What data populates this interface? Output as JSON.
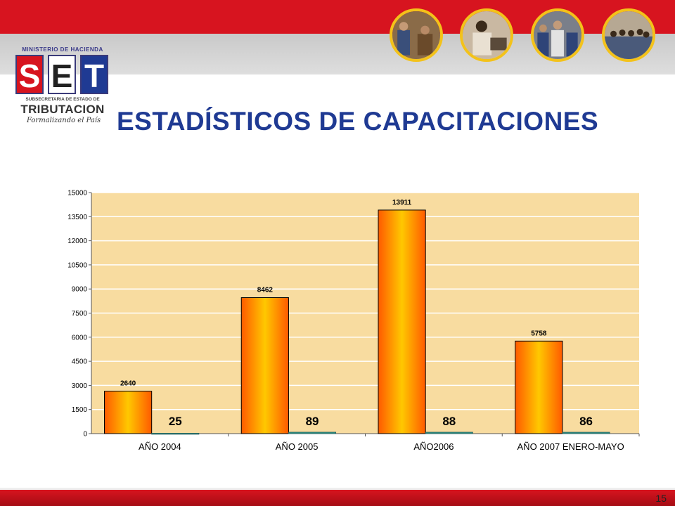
{
  "header": {
    "logo": {
      "top_text": "MINISTERIO DE HACIENDA",
      "letters": [
        "S",
        "E",
        "T"
      ],
      "subtitle": "SUBSECRETARIA DE ESTADO DE",
      "name": "TRIBUTACION",
      "tagline": "Formalizando el País"
    },
    "photos": [
      "photo-training-1",
      "photo-training-2",
      "photo-training-3",
      "photo-training-4"
    ],
    "colors": {
      "brand_red": "#d7141f",
      "brand_blue": "#1f3a93",
      "photo_border": "#f3c21a"
    }
  },
  "title": "ESTADÍSTICOS DE CAPACITACIONES",
  "chart_data": {
    "type": "bar",
    "categories": [
      "AÑO 2004",
      "AÑO 2005",
      "AÑO2006",
      "AÑO 2007 ENERO-MAYO"
    ],
    "series": [
      {
        "values": [
          2640,
          8462,
          13911,
          5758
        ],
        "labels": [
          "2640",
          "8462",
          "13911",
          "5758"
        ],
        "color": "#ffc800"
      },
      {
        "values": [
          25,
          89,
          88,
          86
        ],
        "labels": [
          "25",
          "89",
          "88",
          "86"
        ],
        "color": "#2a9a8a"
      }
    ],
    "ylim": [
      0,
      15000
    ],
    "yticks": [
      "0",
      "1500",
      "3000",
      "4500",
      "6000",
      "7500",
      "9000",
      "10500",
      "12000",
      "13500",
      "15000"
    ],
    "grid": true,
    "plot_background": "#f8dca0"
  },
  "footer": {
    "page_number": "15"
  }
}
